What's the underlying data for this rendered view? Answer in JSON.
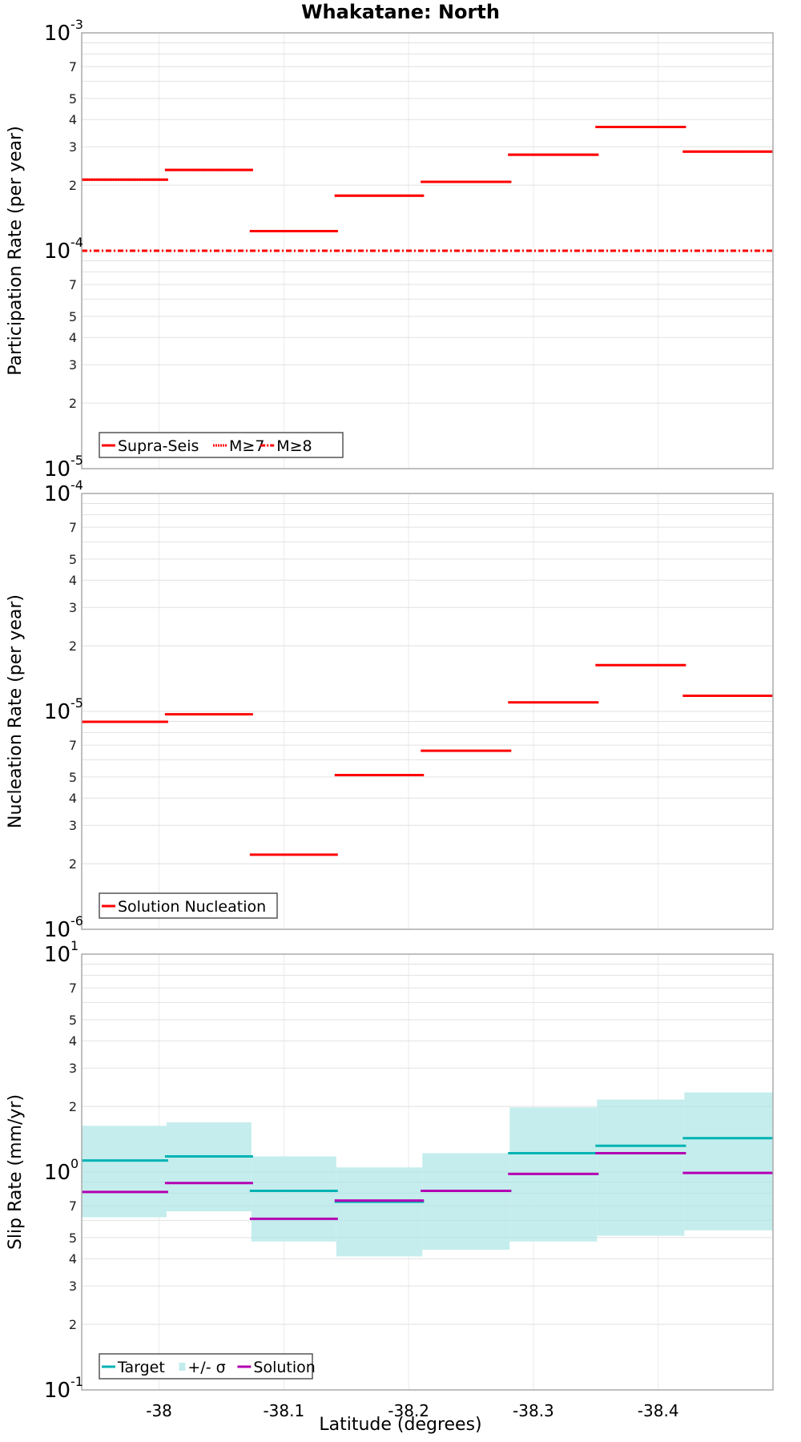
{
  "title": "Whakatane: North",
  "chart_data": [
    {
      "type": "line",
      "subtype": "step-segments",
      "panel": "participation",
      "ylabel": "Participation Rate (per year)",
      "xlabel": "Latitude (degrees)",
      "yscale": "log",
      "ylim": [
        1e-05,
        0.001
      ],
      "xlim": [
        -37.938,
        -38.492
      ],
      "grid": true,
      "legend_position": "lower-left",
      "legend": [
        "Supra-Seis",
        "M≥7",
        "M≥8"
      ],
      "section_edges": [
        -37.938,
        -38.006,
        -38.074,
        -38.142,
        -38.211,
        -38.281,
        -38.351,
        -38.421,
        -38.492
      ],
      "series": [
        {
          "name": "Supra-Seis",
          "style": "solid",
          "color": "#ff0000",
          "values": [
            0.000212,
            0.000235,
            0.000123,
            0.000179,
            0.000207,
            0.000276,
            0.00037,
            0.000285
          ]
        },
        {
          "name": "M≥7",
          "style": "dotted",
          "color": "#ff0000",
          "values": [
            0.000212,
            0.000235,
            0.000123,
            0.000179,
            0.000207,
            0.000276,
            0.00037,
            0.000285
          ]
        },
        {
          "name": "M≥8",
          "style": "dash-dot",
          "color": "#ff0000",
          "values": [
            0.0001,
            0.0001,
            0.0001,
            0.0001,
            0.0001,
            0.0001,
            0.0001,
            0.0001
          ]
        }
      ]
    },
    {
      "type": "line",
      "subtype": "step-segments",
      "panel": "nucleation",
      "ylabel": "Nucleation Rate (per year)",
      "xlabel": "Latitude (degrees)",
      "yscale": "log",
      "ylim": [
        1e-06,
        0.0001
      ],
      "xlim": [
        -37.938,
        -38.492
      ],
      "grid": true,
      "legend_position": "lower-left",
      "legend": [
        "Solution Nucleation"
      ],
      "section_edges": [
        -37.938,
        -38.006,
        -38.074,
        -38.142,
        -38.211,
        -38.281,
        -38.351,
        -38.421,
        -38.492
      ],
      "series": [
        {
          "name": "Solution Nucleation",
          "style": "solid",
          "color": "#ff0000",
          "values": [
            8.96e-06,
            9.7e-06,
            2.2e-06,
            5.1e-06,
            6.6e-06,
            1.1e-05,
            1.63e-05,
            1.18e-05
          ]
        }
      ]
    },
    {
      "type": "line",
      "subtype": "step-segments-with-band",
      "panel": "slip",
      "ylabel": "Slip Rate (mm/yr)",
      "xlabel": "Latitude (degrees)",
      "yscale": "log",
      "ylim": [
        0.1,
        10
      ],
      "xlim": [
        -37.938,
        -38.492
      ],
      "grid": true,
      "legend_position": "lower-left",
      "legend": [
        "Target",
        "+/- σ",
        "Solution"
      ],
      "section_edges": [
        -37.938,
        -38.006,
        -38.074,
        -38.142,
        -38.211,
        -38.281,
        -38.351,
        -38.421,
        -38.492
      ],
      "series": [
        {
          "name": "Target",
          "style": "solid",
          "color": "#00b3b3",
          "values": [
            1.13,
            1.18,
            0.82,
            0.73,
            0.82,
            1.22,
            1.32,
            1.43
          ]
        },
        {
          "name": "+/- σ",
          "style": "band",
          "color": "#c2ecec",
          "upper": [
            1.63,
            1.69,
            1.18,
            1.05,
            1.22,
            1.98,
            2.15,
            2.32
          ],
          "lower": [
            0.62,
            0.66,
            0.48,
            0.41,
            0.44,
            0.48,
            0.51,
            0.54
          ]
        },
        {
          "name": "Solution",
          "style": "solid",
          "color": "#b300b3",
          "values": [
            0.81,
            0.89,
            0.61,
            0.74,
            0.82,
            0.98,
            1.22,
            0.99
          ]
        }
      ]
    }
  ],
  "axes": {
    "x_ticks": [
      "-38",
      "-38.1",
      "-38.2",
      "-38.3",
      "-38.4"
    ],
    "x_tick_values": [
      -38,
      -38.1,
      -38.2,
      -38.3,
      -38.4
    ],
    "xlabel": "Latitude (degrees)",
    "minor_tick_labels": [
      "7",
      "5",
      "4",
      "3",
      "2"
    ],
    "panel1_decades": {
      "top_base": "10",
      "top_exp": "-3",
      "mid_base": "10",
      "mid_exp": "-4",
      "bot_base": "10",
      "bot_exp": "-5"
    },
    "panel2_decades": {
      "top_base": "10",
      "top_exp": "-4",
      "mid_base": "10",
      "mid_exp": "-5",
      "bot_base": "10",
      "bot_exp": "-6"
    },
    "panel3_decades": {
      "top_base": "10",
      "top_exp": "1",
      "mid_base": "10",
      "mid_exp": "0",
      "bot_base": "10",
      "bot_exp": "-1"
    }
  },
  "legends": {
    "participation": [
      "Supra-Seis",
      "M≥7",
      "M≥8"
    ],
    "nucleation": [
      "Solution Nucleation"
    ],
    "slip": [
      "Target",
      "+/- σ",
      "Solution"
    ]
  },
  "colors": {
    "red": "#ff0000",
    "target": "#00b3b3",
    "band": "#c2ecec",
    "solution": "#b300b3",
    "grid": "#ebebeb",
    "frame": "#aaaaaa"
  }
}
